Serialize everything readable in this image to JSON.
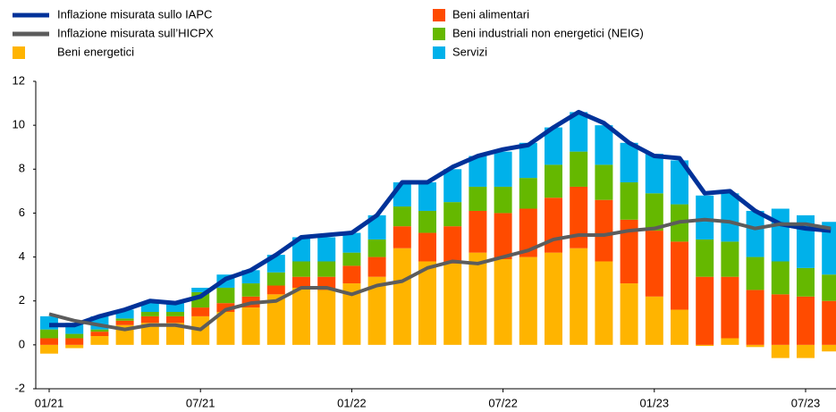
{
  "chart_data": {
    "type": "bar",
    "categories": [
      "01/21",
      null,
      null,
      null,
      null,
      null,
      "07/21",
      null,
      null,
      null,
      null,
      null,
      "01/22",
      null,
      null,
      null,
      null,
      null,
      "07/22",
      null,
      null,
      null,
      null,
      null,
      "01/23",
      null,
      null,
      null,
      null,
      null,
      "07/23",
      null
    ],
    "series": [
      {
        "name": "Inflazione misurata sullo IAPC",
        "kind": "line",
        "color": "#003299",
        "values": [
          0.9,
          0.9,
          1.3,
          1.6,
          2.0,
          1.9,
          2.2,
          3.0,
          3.4,
          4.1,
          4.9,
          5.0,
          5.1,
          5.9,
          7.4,
          7.4,
          8.1,
          8.6,
          8.9,
          9.1,
          9.9,
          10.6,
          10.1,
          9.2,
          8.6,
          8.5,
          6.9,
          7.0,
          6.1,
          5.5,
          5.3,
          5.2
        ]
      },
      {
        "name": "Inflazione misurata sull’HICPX",
        "kind": "line",
        "color": "#5c5c5c",
        "values": [
          1.4,
          1.1,
          0.9,
          0.7,
          0.9,
          0.9,
          0.7,
          1.6,
          1.9,
          2.0,
          2.6,
          2.6,
          2.3,
          2.7,
          2.9,
          3.5,
          3.8,
          3.7,
          4.0,
          4.3,
          4.8,
          5.0,
          5.0,
          5.2,
          5.3,
          5.6,
          5.7,
          5.6,
          5.3,
          5.5,
          5.5,
          5.3
        ]
      },
      {
        "name": "Beni energetici",
        "kind": "bar",
        "color": "#ffb400",
        "values": [
          -0.4,
          -0.15,
          0.4,
          0.9,
          1.0,
          1.0,
          1.3,
          1.5,
          1.7,
          2.3,
          2.6,
          2.5,
          2.8,
          3.1,
          4.4,
          3.8,
          3.7,
          4.2,
          3.9,
          4.0,
          4.2,
          4.4,
          3.8,
          2.8,
          2.2,
          1.6,
          -0.05,
          0.3,
          -0.1,
          -0.6,
          -0.6,
          -0.3
        ]
      },
      {
        "name": "Beni alimentari",
        "kind": "bar",
        "color": "#ff4b00",
        "values": [
          0.3,
          0.3,
          0.2,
          0.2,
          0.3,
          0.3,
          0.4,
          0.4,
          0.5,
          0.4,
          0.5,
          0.6,
          0.8,
          0.9,
          1.0,
          1.3,
          1.7,
          1.9,
          2.1,
          2.2,
          2.5,
          2.8,
          2.8,
          2.9,
          3.0,
          3.1,
          3.1,
          2.8,
          2.5,
          2.3,
          2.2,
          2.0
        ]
      },
      {
        "name": "Beni industriali non energetici (NEIG)",
        "kind": "bar",
        "color": "#65b800",
        "values": [
          0.4,
          0.2,
          0.1,
          0.1,
          0.2,
          0.2,
          0.7,
          0.7,
          0.6,
          0.6,
          0.7,
          0.7,
          0.6,
          0.8,
          0.9,
          1.0,
          1.1,
          1.1,
          1.2,
          1.4,
          1.5,
          1.6,
          1.6,
          1.7,
          1.7,
          1.7,
          1.7,
          1.6,
          1.5,
          1.5,
          1.3,
          1.2
        ]
      },
      {
        "name": "Servizi",
        "kind": "bar",
        "color": "#00b1ea",
        "values": [
          0.6,
          0.5,
          0.6,
          0.4,
          0.4,
          0.4,
          0.2,
          0.6,
          0.6,
          0.8,
          1.1,
          1.1,
          0.9,
          1.1,
          1.1,
          1.3,
          1.5,
          1.4,
          1.6,
          1.6,
          1.7,
          1.8,
          1.8,
          1.8,
          1.8,
          2.0,
          2.0,
          2.2,
          2.1,
          2.4,
          2.4,
          2.4
        ]
      }
    ],
    "ylim": [
      -2,
      12
    ],
    "yticks": [
      -2,
      0,
      2,
      4,
      6,
      8,
      10,
      12
    ],
    "grid": false
  }
}
